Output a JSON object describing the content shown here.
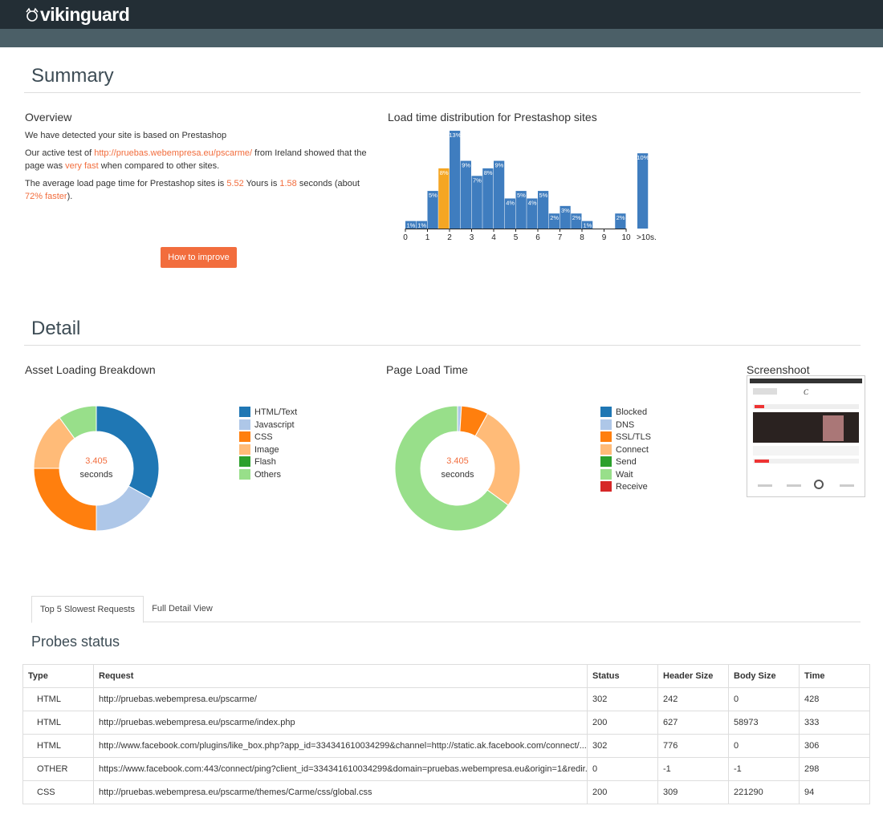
{
  "header": {
    "logo": "vikinguard"
  },
  "summary": {
    "title": "Summary",
    "overview": {
      "title": "Overview",
      "paragraphs": [
        [
          {
            "text": "We have detected your site is based on Prestashop"
          }
        ],
        [
          {
            "text": "Our active test of "
          },
          {
            "text": "http://pruebas.webempresa.eu/pscarme/",
            "accent": true
          },
          {
            "text": " from Ireland showed that the page was "
          },
          {
            "text": "very fast",
            "accent": true
          },
          {
            "text": " when compared to other sites."
          }
        ],
        [
          {
            "text": "The average load page time for Prestashop sites is "
          },
          {
            "text": "5.52",
            "accent": true
          },
          {
            "text": " Yours is "
          },
          {
            "text": "1.58",
            "accent": true
          },
          {
            "text": " seconds (about "
          },
          {
            "text": "72% faster",
            "accent": true
          },
          {
            "text": ")."
          }
        ]
      ],
      "button": "How to improve"
    }
  },
  "chart_data": [
    {
      "type": "histogram",
      "title": "Load time distribution for Prestashop sites",
      "bins": [
        0,
        0.5,
        1,
        1.5,
        2,
        2.5,
        3,
        3.5,
        4,
        4.5,
        5,
        5.5,
        6,
        6.5,
        7,
        7.5,
        8,
        8.5,
        9,
        9.5,
        10
      ],
      "values": [
        1,
        1,
        5,
        8,
        13,
        9,
        7,
        8,
        9,
        4,
        5,
        4,
        5,
        2,
        3,
        2,
        1,
        0,
        0,
        2
      ],
      "value_labels": [
        "1%",
        "1%",
        "5%",
        "8%",
        "13%",
        "9%",
        "7%",
        "8%",
        "9%",
        "4%",
        "5%",
        "4%",
        "5%",
        "2%",
        "3%",
        "2%",
        "1%",
        null,
        null,
        "2%"
      ],
      "colors": [
        "#3f7dbf",
        "#3f7dbf",
        "#3f7dbf",
        "#f5a623",
        "#3f7dbf",
        "#3f7dbf",
        "#3f7dbf",
        "#3f7dbf",
        "#3f7dbf",
        "#3f7dbf",
        "#3f7dbf",
        "#3f7dbf",
        "#3f7dbf",
        "#3f7dbf",
        "#3f7dbf",
        "#3f7dbf",
        "#3f7dbf",
        "#3f7dbf",
        "#3f7dbf",
        "#3f7dbf"
      ],
      "overflow": {
        "label": ">10s.",
        "value": 10,
        "value_label": "10%",
        "color": "#3f7dbf"
      },
      "xlim": [
        0,
        10
      ],
      "xticks": [
        0,
        1,
        2,
        3,
        4,
        5,
        6,
        7,
        8,
        9,
        10
      ]
    },
    {
      "type": "donut",
      "title": "Asset Loading Breakdown",
      "center_value": "3.405",
      "center_unit": "seconds",
      "categories": [
        "HTML/Text",
        "Javascript",
        "CSS",
        "Image",
        "Flash",
        "Others"
      ],
      "values": [
        33,
        17,
        25,
        15,
        0,
        10
      ],
      "colors": [
        "#1f77b4",
        "#aec7e8",
        "#ff7f0e",
        "#ffbb78",
        "#2ca02c",
        "#98df8a"
      ]
    },
    {
      "type": "donut",
      "title": "Page Load Time",
      "center_value": "3.405",
      "center_unit": "seconds",
      "categories": [
        "Blocked",
        "DNS",
        "SSL/TLS",
        "Connect",
        "Send",
        "Wait",
        "Receive"
      ],
      "values": [
        0,
        1,
        7,
        27,
        0,
        65,
        0
      ],
      "colors": [
        "#1f77b4",
        "#aec7e8",
        "#ff7f0e",
        "#ffbb78",
        "#2ca02c",
        "#98df8a",
        "#d62728"
      ]
    }
  ],
  "detail": {
    "title": "Detail",
    "screenshot_title": "Screenshoot"
  },
  "tabs": [
    "Top 5 Slowest Requests",
    "Full Detail View"
  ],
  "table": {
    "title": "Probes status",
    "columns": [
      "Type",
      "Request",
      "Status",
      "Header Size",
      "Body Size",
      "Time"
    ],
    "rows": [
      [
        "HTML",
        "http://pruebas.webempresa.eu/pscarme/",
        302,
        242,
        0,
        428
      ],
      [
        "HTML",
        "http://pruebas.webempresa.eu/pscarme/index.php",
        200,
        627,
        58973,
        333
      ],
      [
        "HTML",
        "http://www.facebook.com/plugins/like_box.php?app_id=334341610034299&channel=http://static.ak.facebook.com/connect/...",
        302,
        776,
        0,
        306
      ],
      [
        "OTHER",
        "https://www.facebook.com:443/connect/ping?client_id=334341610034299&domain=pruebas.webempresa.eu&origin=1&redir...",
        0,
        -1,
        -1,
        298
      ],
      [
        "CSS",
        "http://pruebas.webempresa.eu/pscarme/themes/Carme/css/global.css",
        200,
        309,
        221290,
        94
      ]
    ]
  }
}
